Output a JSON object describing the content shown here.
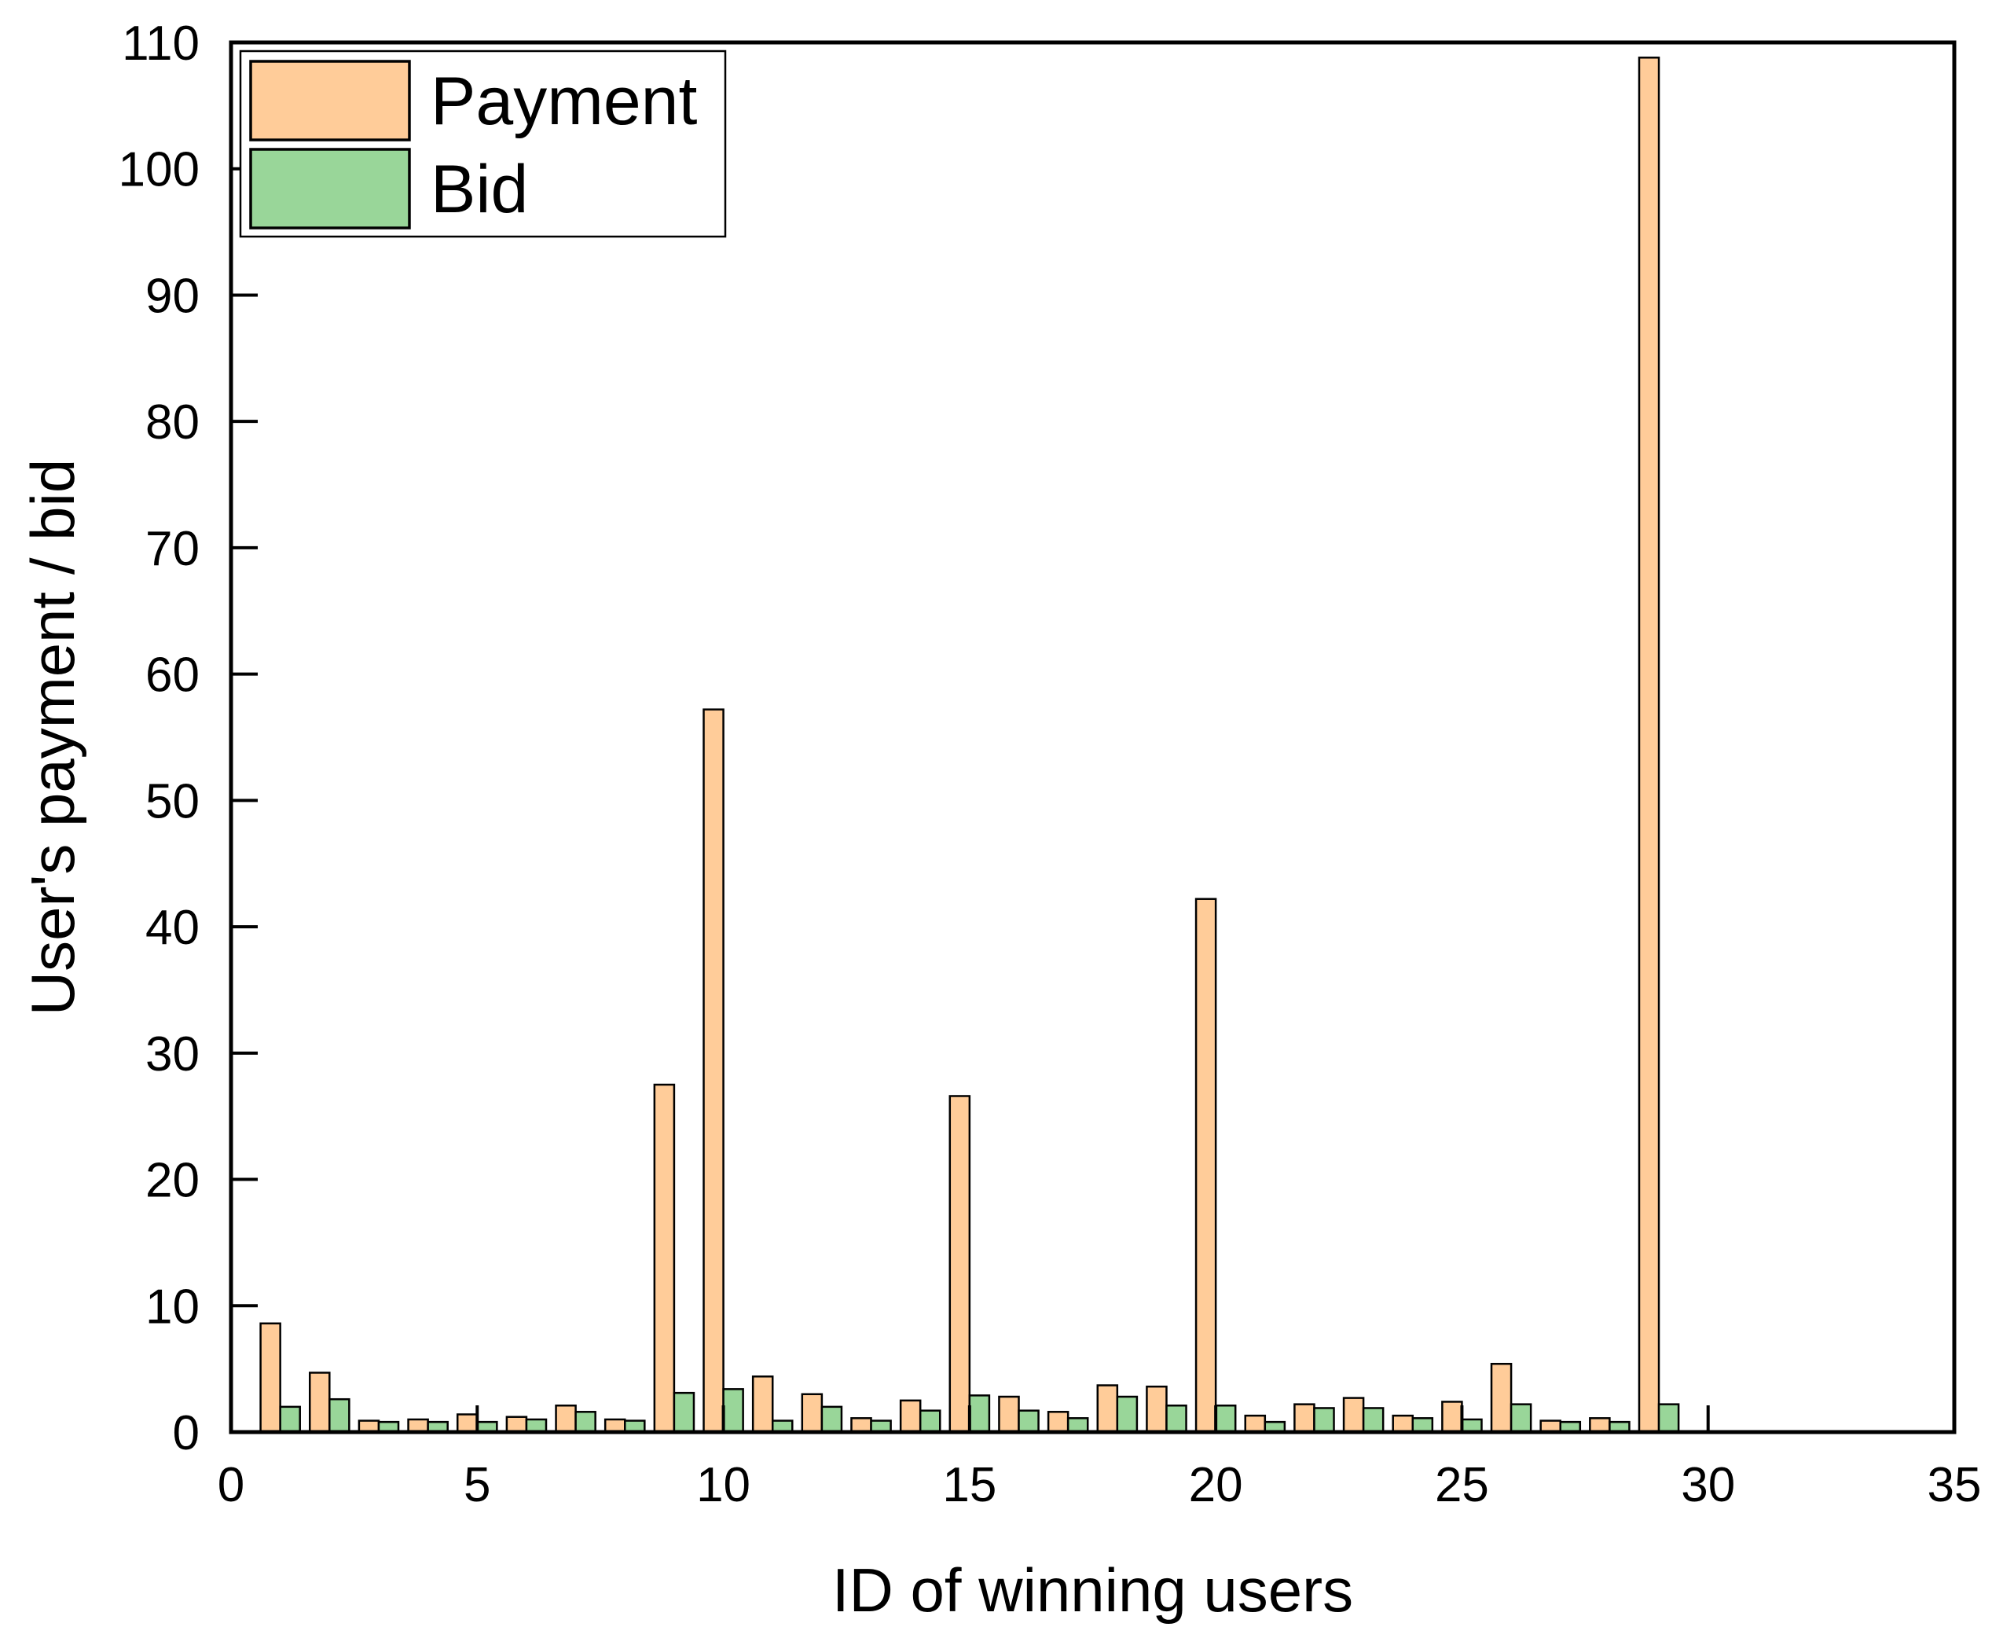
{
  "chart_data": {
    "type": "bar",
    "title": "",
    "xlabel": "ID of winning users",
    "ylabel": "User's payment / bid",
    "xlim": [
      0,
      35
    ],
    "ylim": [
      0,
      110
    ],
    "xticks": [
      0,
      5,
      10,
      15,
      20,
      25,
      30,
      35
    ],
    "yticks": [
      0,
      10,
      20,
      30,
      40,
      50,
      60,
      70,
      80,
      90,
      100,
      110
    ],
    "legend_position": "top-left",
    "grid": false,
    "x": [
      1,
      2,
      3,
      4,
      5,
      6,
      7,
      8,
      9,
      10,
      11,
      12,
      13,
      14,
      15,
      16,
      17,
      18,
      19,
      20,
      21,
      22,
      23,
      24,
      25,
      26,
      27,
      28,
      29
    ],
    "series": [
      {
        "name": "Payment",
        "color": "#FFCC99",
        "values": [
          8.6,
          4.7,
          0.9,
          1.0,
          1.4,
          1.2,
          2.1,
          1.0,
          27.5,
          57.2,
          4.4,
          3.0,
          1.1,
          2.5,
          26.6,
          2.8,
          1.6,
          3.7,
          3.6,
          42.2,
          1.3,
          2.2,
          2.7,
          1.3,
          2.4,
          5.4,
          0.9,
          1.1,
          108.8
        ]
      },
      {
        "name": "Bid",
        "color": "#99D699",
        "values": [
          2.0,
          2.6,
          0.8,
          0.8,
          0.8,
          1.0,
          1.6,
          0.9,
          3.1,
          3.4,
          0.9,
          2.0,
          0.9,
          1.7,
          2.9,
          1.7,
          1.1,
          2.8,
          2.1,
          2.1,
          0.8,
          1.9,
          1.9,
          1.1,
          1.0,
          2.2,
          0.8,
          0.8,
          2.2
        ]
      }
    ]
  }
}
